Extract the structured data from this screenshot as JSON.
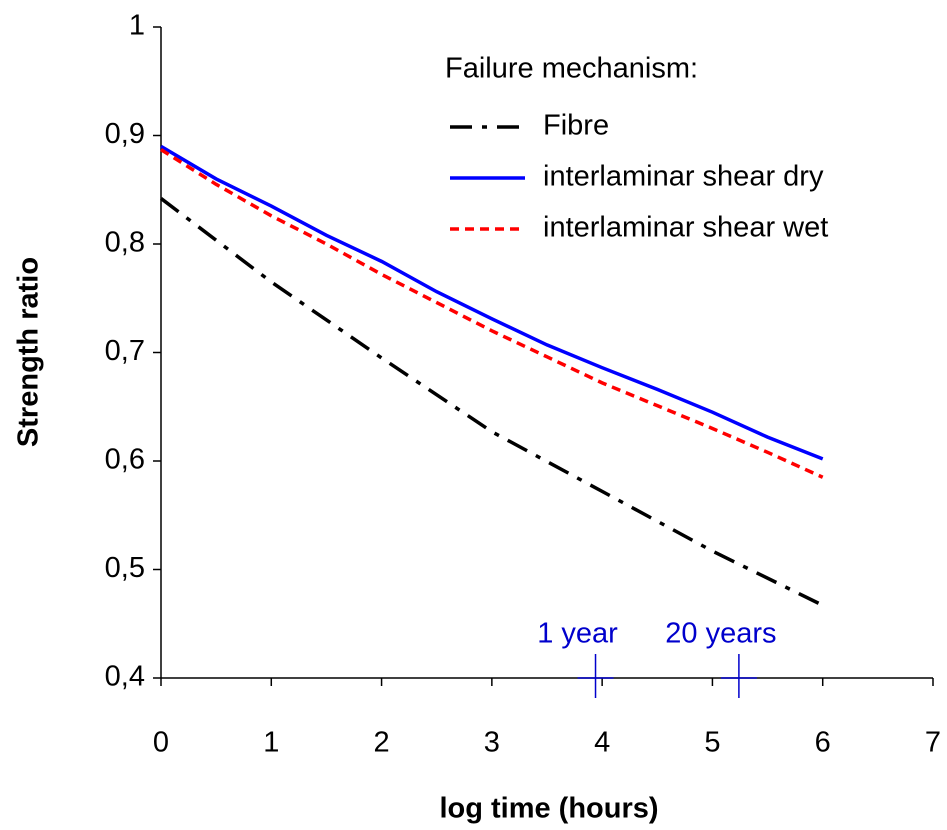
{
  "chart_data": {
    "type": "line",
    "legend_title": "Failure mechanism:",
    "xlabel": "log time (hours)",
    "ylabel": "Strength ratio",
    "xlim": [
      0,
      7
    ],
    "xticks": [
      0,
      1,
      2,
      3,
      4,
      5,
      6,
      7
    ],
    "ylim": [
      0.4,
      1
    ],
    "yticks": [
      {
        "value": 0.4,
        "label": "0,4"
      },
      {
        "value": 0.5,
        "label": "0,5"
      },
      {
        "value": 0.6,
        "label": "0,6"
      },
      {
        "value": 0.7,
        "label": "0,7"
      },
      {
        "value": 0.8,
        "label": "0,8"
      },
      {
        "value": 0.9,
        "label": "0,9"
      },
      1
    ],
    "legend": "upper right",
    "series": [
      {
        "name": "Fibre",
        "color": "#000000",
        "dash": "22,10,5,10",
        "x": [
          0,
          1,
          2,
          3,
          4,
          5,
          6
        ],
        "values": [
          0.842,
          0.765,
          0.695,
          0.627,
          0.572,
          0.517,
          0.467
        ]
      },
      {
        "name": "interlaminar shear dry",
        "color": "#0000ff",
        "dash": "none",
        "x": [
          0,
          0.5,
          1,
          1.5,
          2,
          2.5,
          3,
          3.5,
          4,
          4.5,
          5,
          5.5,
          6
        ],
        "values": [
          0.89,
          0.86,
          0.835,
          0.808,
          0.784,
          0.756,
          0.731,
          0.707,
          0.686,
          0.666,
          0.645,
          0.622,
          0.602
        ]
      },
      {
        "name": "interlaminar shear wet",
        "color": "#ff0000",
        "dash": "9,6",
        "x": [
          0,
          0.5,
          1,
          1.5,
          2,
          2.5,
          3,
          3.5,
          4,
          4.5,
          5,
          5.5,
          6
        ],
        "values": [
          0.887,
          0.855,
          0.826,
          0.8,
          0.772,
          0.746,
          0.72,
          0.696,
          0.672,
          0.651,
          0.63,
          0.608,
          0.585
        ]
      }
    ],
    "annotations": [
      {
        "text": "1 year",
        "x": 3.94,
        "color": "#0000cc"
      },
      {
        "text": "20 years",
        "x": 5.24,
        "color": "#0000cc"
      }
    ]
  }
}
